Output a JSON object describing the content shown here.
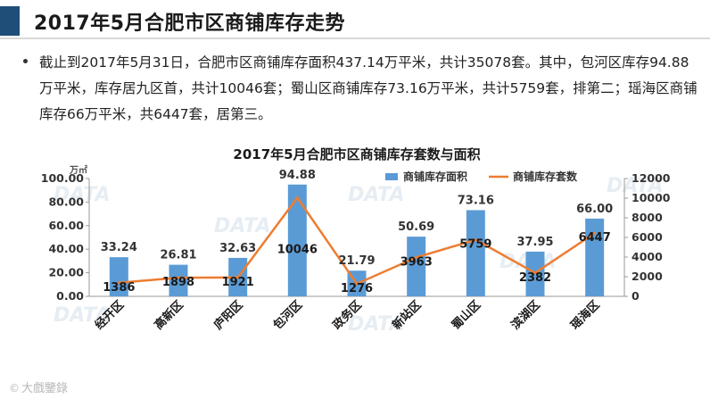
{
  "header": {
    "title": "2017年5月合肥市区商铺库存走势"
  },
  "bullet": {
    "text": "截止到2017年5月31日，合肥市区商铺库存面积437.14万平米，共计35078套。其中，包河区库存94.88万平米，库存居九区首，共计10046套；蜀山区商铺库存73.16万平米，共计5759套，排第二；瑶海区商铺库存66万平米，共6447套，居第三。"
  },
  "watermark": {
    "text": "大戲鑒錄"
  },
  "colors": {
    "bar": "#5b9bd5",
    "line": "#ed7d31",
    "title_accent": "#1f4e79"
  },
  "chart_data": {
    "type": "bar",
    "title": "2017年5月合肥市区商铺库存套数与面积",
    "y_unit": "万㎡",
    "categories": [
      "经开区",
      "高新区",
      "庐阳区",
      "包河区",
      "政务区",
      "新站区",
      "蜀山区",
      "滨湖区",
      "瑶海区"
    ],
    "series": [
      {
        "name": "商铺库存面积",
        "type": "bar",
        "axis": "left",
        "values": [
          33.24,
          26.81,
          32.63,
          94.88,
          21.79,
          50.69,
          73.16,
          37.95,
          66.0
        ],
        "labels": [
          "33.24",
          "26.81",
          "32.63",
          "94.88",
          "21.79",
          "50.69",
          "73.16",
          "37.95",
          "66.00"
        ]
      },
      {
        "name": "商铺库存套数",
        "type": "line",
        "axis": "right",
        "values": [
          1386,
          1898,
          1921,
          10046,
          1276,
          3963,
          5759,
          2382,
          6447
        ],
        "labels": [
          "1386",
          "1898",
          "1921",
          "10046",
          "1276",
          "3963",
          "5759",
          "2382",
          "6447"
        ]
      }
    ],
    "y_left": {
      "range": [
        0,
        100
      ],
      "ticks": [
        "0.00",
        "20.00",
        "40.00",
        "60.00",
        "80.00",
        "100.00"
      ]
    },
    "y_right": {
      "range": [
        0,
        12000
      ],
      "ticks": [
        "0",
        "2000",
        "4000",
        "6000",
        "8000",
        "10000",
        "12000"
      ]
    },
    "legend": "top-right",
    "grid": false
  }
}
